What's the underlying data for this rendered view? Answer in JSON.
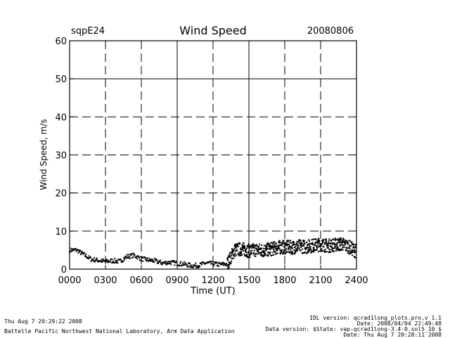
{
  "header": {
    "site": "sqpE24",
    "title": "Wind Speed",
    "date": "20080806"
  },
  "footer": {
    "left_line1": "Thu Aug  7 20:29:22 2008",
    "left_line2": "Battelle Pacific Northwest National Laboratory, Arm Data Application",
    "right_line1": "IDL version: qcrad1long_plots.pro,v 1.1",
    "right_line2": "Date: 2008/04/04 22:49:48",
    "right_line3": "Data version: $State: vap-qcrad1long-3.4-0.sol5_10 $",
    "right_line4": "Date: Thu Aug  7 20:28:11 2008"
  },
  "chart_data": {
    "type": "scatter",
    "title": "Wind Speed",
    "xlabel": "Time (UT)",
    "ylabel": "Wind Speed, m/s",
    "xlim": [
      0,
      2400
    ],
    "ylim": [
      0,
      60
    ],
    "x_ticks": [
      "0000",
      "0300",
      "0600",
      "0900",
      "1200",
      "1500",
      "1800",
      "2100",
      "2400"
    ],
    "y_ticks": [
      "0",
      "10",
      "20",
      "30",
      "40",
      "50",
      "60"
    ],
    "grid": "dashed, solid at 0900, 1500 and 50 m/s",
    "series": [
      {
        "x": [
          0,
          60,
          120,
          180,
          240,
          300,
          360,
          420,
          480,
          540,
          600,
          660,
          720,
          780,
          840,
          900,
          960,
          1020,
          1080,
          1140,
          1200,
          1260,
          1320,
          1380,
          1440,
          1500,
          1560,
          1620,
          1680,
          1740,
          1800,
          1860,
          1920,
          1980,
          2040,
          2100,
          2160,
          2220,
          2280,
          2340,
          2400
        ],
        "y": [
          5.0,
          5.0,
          3.8,
          2.6,
          2.3,
          2.0,
          2.2,
          2.0,
          3.3,
          3.6,
          2.7,
          2.4,
          2.1,
          1.6,
          1.8,
          1.5,
          1.3,
          0.9,
          1.0,
          1.6,
          1.4,
          1.2,
          1.4,
          5.0,
          5.3,
          4.8,
          5.1,
          4.9,
          5.2,
          5.7,
          5.8,
          5.7,
          6.0,
          5.9,
          6.2,
          6.5,
          6.1,
          6.4,
          6.6,
          5.8,
          4.6
        ]
      }
    ]
  }
}
